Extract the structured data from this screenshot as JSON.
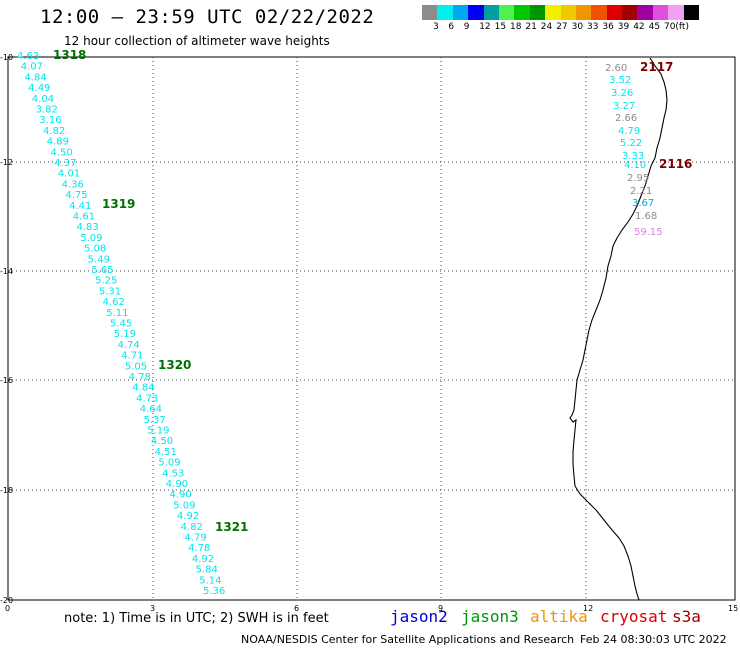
{
  "header": {
    "title": "12:00 – 23:59 UTC 02/22/2022",
    "subtitle": "12 hour collection of altimeter wave heights"
  },
  "legend": {
    "colors": [
      "#8c8c8c",
      "#00f0f0",
      "#00a8f0",
      "#0000f0",
      "#00a0a0",
      "#50f050",
      "#00c800",
      "#009600",
      "#f0f000",
      "#f0c800",
      "#f09600",
      "#f05000",
      "#dc0000",
      "#a00000",
      "#a000a0",
      "#dc50dc",
      "#f0a0f0",
      "#000000"
    ],
    "labels": [
      "3",
      "6",
      "9",
      "12",
      "15",
      "18",
      "21",
      "24",
      "27",
      "30",
      "33",
      "36",
      "39",
      "42",
      "45",
      "70",
      "(ft)"
    ]
  },
  "axes": {
    "x_ticks": [
      "0",
      "3",
      "6",
      "9",
      "12",
      "15"
    ],
    "y_ticks": [
      "-10",
      "-12",
      "-14",
      "-16",
      "-18",
      "-20"
    ]
  },
  "track_west": {
    "color": "#00e5ee",
    "values": [
      "4.63",
      "4.07",
      "4.84",
      "4.49",
      "4.04",
      "3.82",
      "3.16",
      "4.82",
      "4.89",
      "4.50",
      "4.37",
      "4.01",
      "4.36",
      "4.75",
      "4.41",
      "4.61",
      "4.83",
      "5.09",
      "5.08",
      "5.49",
      "5.65",
      "5.25",
      "5.31",
      "4.62",
      "5.11",
      "5.45",
      "5.19",
      "4.74",
      "4.71",
      "5.05",
      "4.78",
      "4.84",
      "4.73",
      "4.64",
      "5.37",
      "5.19",
      "4.50",
      "4.51",
      "5.09",
      "4.53",
      "4.90",
      "4.90",
      "5.09",
      "4.92",
      "4.82",
      "4.79",
      "4.78",
      "4.92",
      "5.84",
      "5.14",
      "5.36"
    ],
    "time_labels": [
      "1318",
      "1319",
      "1320",
      "1321"
    ],
    "time_color": "#007000"
  },
  "track_east": {
    "entries": [
      {
        "v": "2.60",
        "c": "#8c8c8c"
      },
      {
        "v": "3.52",
        "c": "#00e5ee"
      },
      {
        "v": "3.26",
        "c": "#00e5ee"
      },
      {
        "v": "3.27",
        "c": "#00e5ee"
      },
      {
        "v": "2.66",
        "c": "#8c8c8c"
      },
      {
        "v": "4.79",
        "c": "#00e5ee"
      },
      {
        "v": "5.22",
        "c": "#00e5ee"
      },
      {
        "v": "3.33",
        "c": "#00e5ee"
      },
      {
        "v": "4.10",
        "c": "#00e5ee"
      },
      {
        "v": "2.95",
        "c": "#8c8c8c"
      },
      {
        "v": "2.21",
        "c": "#8c8c8c"
      },
      {
        "v": "3.67",
        "c": "#00a8f0"
      },
      {
        "v": "1.68",
        "c": "#8c8c8c"
      },
      {
        "v": "59.15",
        "c": "#e080e0"
      }
    ],
    "time_labels": [
      "2117",
      "2116"
    ],
    "time_color": "#7a0000"
  },
  "footer": {
    "note": "note: 1) Time is in UTC; 2) SWH is in feet",
    "satellites": [
      {
        "name": "jason2",
        "color": "#0000dd"
      },
      {
        "name": "jason3",
        "color": "#009600"
      },
      {
        "name": "altika",
        "color": "#f09600"
      },
      {
        "name": "cryosat",
        "color": "#dc0000"
      },
      {
        "name": "s3a",
        "color": "#a00000"
      }
    ],
    "credit": "NOAA/NESDIS Center for Satellite Applications and Research",
    "timestamp": "Feb 24 08:30:03 UTC 2022"
  }
}
